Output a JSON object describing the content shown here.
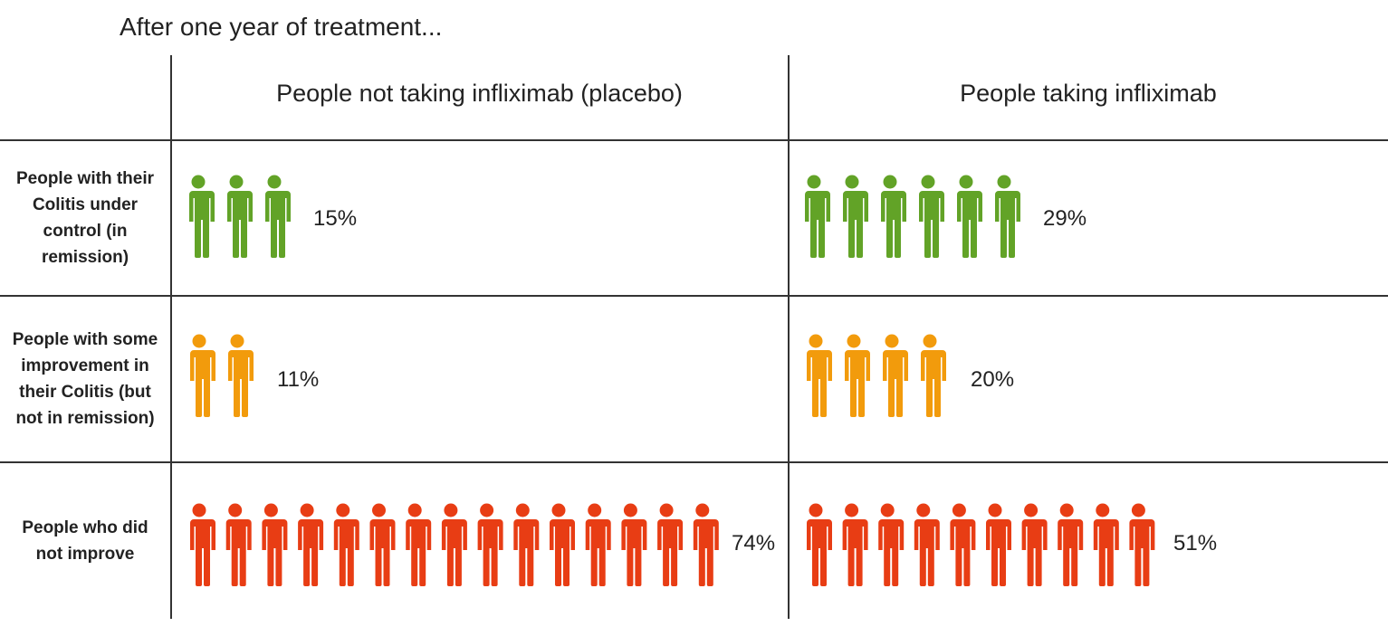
{
  "title": "After one year of treatment...",
  "chart_data": {
    "type": "pictogram",
    "columns": [
      "People not taking infliximab (placebo)",
      "People taking infliximab"
    ],
    "rows": [
      {
        "label": "People with their Colitis under control (in remission)",
        "color": "#62a327",
        "icon": "person-icon",
        "values": [
          "15%",
          "29%"
        ],
        "icon_counts": [
          3,
          6
        ]
      },
      {
        "label": "People with some improvement in their Colitis (but not in remission)",
        "color": "#f29b0c",
        "icon": "person-icon",
        "values": [
          "11%",
          "20%"
        ],
        "icon_counts": [
          2,
          4
        ]
      },
      {
        "label": "People who did not improve",
        "color": "#e83d14",
        "icon": "person-icon",
        "values": [
          "74%",
          "51%"
        ],
        "icon_counts": [
          15,
          10
        ]
      }
    ]
  }
}
